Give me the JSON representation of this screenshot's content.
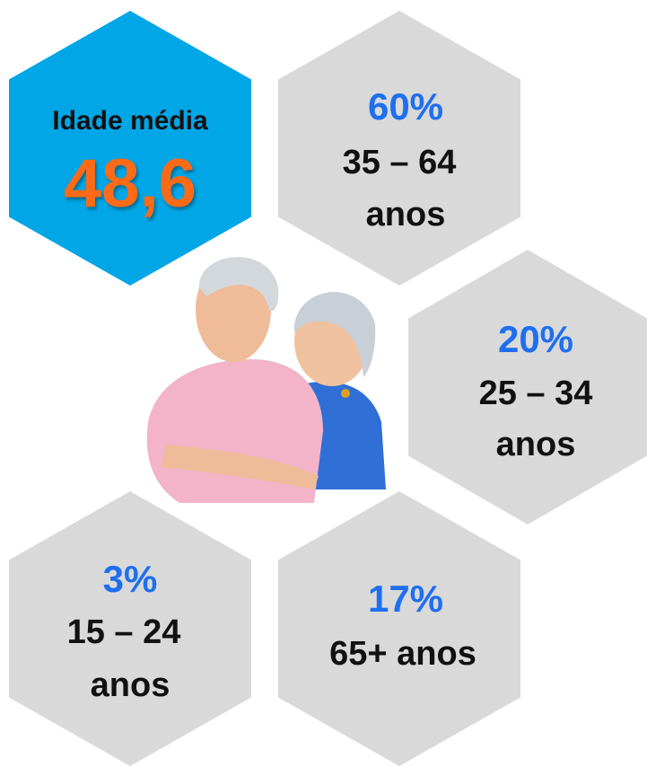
{
  "average": {
    "label": "Idade média",
    "value": "48,6"
  },
  "groups": [
    {
      "percent": "60%",
      "lines": [
        "35 – 64",
        "anos"
      ]
    },
    {
      "percent": "20%",
      "lines": [
        "25 – 34",
        "anos"
      ]
    },
    {
      "percent": "3%",
      "lines": [
        "15 – 24",
        "anos"
      ]
    },
    {
      "percent": "17%",
      "lines": [
        "65+ anos"
      ]
    }
  ]
}
